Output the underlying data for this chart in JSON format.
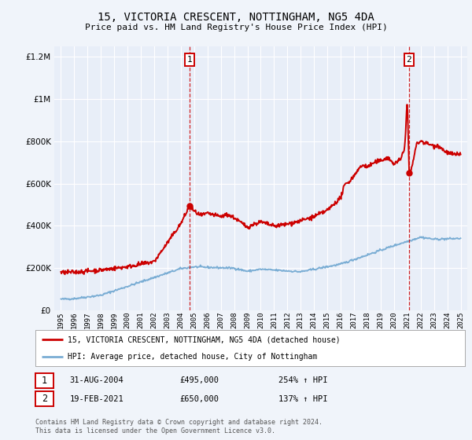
{
  "title": "15, VICTORIA CRESCENT, NOTTINGHAM, NG5 4DA",
  "subtitle": "Price paid vs. HM Land Registry's House Price Index (HPI)",
  "bg_color": "#f0f4fa",
  "plot_bg_color": "#e8eef8",
  "grid_color": "#ffffff",
  "red_line_color": "#cc0000",
  "blue_line_color": "#7aadd4",
  "marker1_date": 2004.667,
  "marker1_price": 495000,
  "marker2_date": 2021.13,
  "marker2_price": 650000,
  "sale1_label": "1",
  "sale1_date": "31-AUG-2004",
  "sale1_price": "£495,000",
  "sale1_hpi": "254% ↑ HPI",
  "sale2_label": "2",
  "sale2_date": "19-FEB-2021",
  "sale2_price": "£650,000",
  "sale2_hpi": "137% ↑ HPI",
  "ylim": [
    0,
    1250000
  ],
  "xlim": [
    1994.5,
    2025.5
  ],
  "yticks": [
    0,
    200000,
    400000,
    600000,
    800000,
    1000000,
    1200000
  ],
  "ytick_labels": [
    "£0",
    "£200K",
    "£400K",
    "£600K",
    "£800K",
    "£1M",
    "£1.2M"
  ],
  "legend_label_red": "15, VICTORIA CRESCENT, NOTTINGHAM, NG5 4DA (detached house)",
  "legend_label_blue": "HPI: Average price, detached house, City of Nottingham",
  "footer_line1": "Contains HM Land Registry data © Crown copyright and database right 2024.",
  "footer_line2": "This data is licensed under the Open Government Licence v3.0."
}
